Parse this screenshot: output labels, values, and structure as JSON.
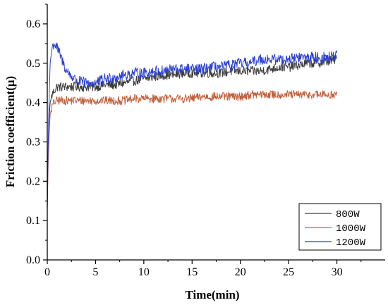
{
  "chart_data": {
    "type": "line",
    "title": "",
    "xlabel": "Time(min)",
    "ylabel": "Friction coefficient(μ)",
    "xlim": [
      0,
      35
    ],
    "ylim": [
      0.0,
      0.65
    ],
    "xticks": [
      0,
      5,
      10,
      15,
      20,
      25,
      30
    ],
    "yticks": [
      0.0,
      0.1,
      0.2,
      0.3,
      0.4,
      0.5,
      0.6
    ],
    "grid": false,
    "legend_position": "bottom-right",
    "series": [
      {
        "name": "800W",
        "color": "#3c3c3c",
        "x": [
          0,
          0.1,
          0.2,
          0.3,
          0.5,
          0.7,
          1,
          1.5,
          2,
          3,
          4,
          5,
          6,
          7,
          8,
          9,
          10,
          11,
          12,
          13,
          14,
          15,
          16,
          17,
          18,
          19,
          20,
          21,
          22,
          23,
          24,
          25,
          26,
          27,
          28,
          29,
          30
        ],
        "values": [
          0.13,
          0.28,
          0.36,
          0.4,
          0.42,
          0.43,
          0.44,
          0.44,
          0.44,
          0.44,
          0.44,
          0.44,
          0.445,
          0.445,
          0.45,
          0.455,
          0.46,
          0.465,
          0.47,
          0.47,
          0.475,
          0.475,
          0.475,
          0.475,
          0.475,
          0.48,
          0.48,
          0.48,
          0.48,
          0.485,
          0.49,
          0.49,
          0.495,
          0.5,
          0.5,
          0.505,
          0.51
        ]
      },
      {
        "name": "1000W",
        "color": "#c0603c",
        "x": [
          0,
          0.1,
          0.2,
          0.3,
          0.5,
          0.7,
          1,
          1.5,
          2,
          3,
          4,
          5,
          6,
          7,
          8,
          9,
          10,
          11,
          12,
          13,
          14,
          15,
          16,
          17,
          18,
          19,
          20,
          21,
          22,
          23,
          24,
          25,
          26,
          27,
          28,
          29,
          30
        ],
        "values": [
          0.13,
          0.25,
          0.32,
          0.37,
          0.39,
          0.4,
          0.405,
          0.405,
          0.405,
          0.405,
          0.405,
          0.405,
          0.405,
          0.405,
          0.405,
          0.41,
          0.41,
          0.41,
          0.41,
          0.41,
          0.41,
          0.41,
          0.415,
          0.415,
          0.415,
          0.415,
          0.415,
          0.42,
          0.42,
          0.42,
          0.42,
          0.42,
          0.42,
          0.42,
          0.42,
          0.42,
          0.42
        ]
      },
      {
        "name": "1200W",
        "color": "#2a3fd4",
        "x": [
          0,
          0.1,
          0.2,
          0.3,
          0.5,
          0.7,
          1,
          1.5,
          2,
          3,
          4,
          5,
          6,
          7,
          8,
          9,
          10,
          11,
          12,
          13,
          14,
          15,
          16,
          17,
          18,
          19,
          20,
          21,
          22,
          23,
          24,
          25,
          26,
          27,
          28,
          29,
          30
        ],
        "values": [
          0.13,
          0.3,
          0.42,
          0.5,
          0.54,
          0.55,
          0.54,
          0.51,
          0.48,
          0.455,
          0.45,
          0.45,
          0.46,
          0.465,
          0.47,
          0.475,
          0.475,
          0.48,
          0.48,
          0.485,
          0.485,
          0.485,
          0.485,
          0.49,
          0.49,
          0.495,
          0.5,
          0.5,
          0.51,
          0.51,
          0.51,
          0.51,
          0.515,
          0.515,
          0.515,
          0.515,
          0.52
        ]
      }
    ]
  }
}
